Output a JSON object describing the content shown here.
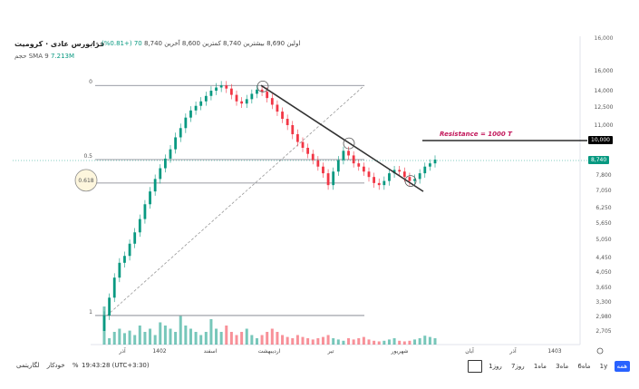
{
  "header": {
    "title": "فرابورس عادی · کرومیت",
    "ohlc": "اولین 8,690 بیشترین 8,740 کمترین 8,600 آخرین 8,740",
    "change": "70 (+0.81%)",
    "volume_label": "حجم SMA 9",
    "volume_value": "7.213M"
  },
  "chart_data": {
    "type": "candlestick",
    "price_axis": [
      "16,000",
      "14,000",
      "12,500",
      "11,000",
      "10,000",
      "8,740",
      "7,800",
      "7,050",
      "6,250",
      "5,650",
      "5,050",
      "4,450",
      "4,050",
      "3,650",
      "3,300",
      "2,980",
      "2,705"
    ],
    "top_partial_label": "16,000",
    "time_axis": [
      "آذر",
      "1402",
      "اسفند",
      "اردیبهشت",
      "تیر",
      "شهریور",
      "آبان",
      "آذر",
      "1403"
    ],
    "fib_levels": [
      {
        "level": "0",
        "price": 14500
      },
      {
        "level": "0.5",
        "price": 8740
      },
      {
        "level": "0.618",
        "price": 7400
      },
      {
        "level": "1",
        "price": 3000
      }
    ],
    "annotation": "Resistance = 1000 T",
    "resistance_label": "10,000",
    "current_price_label": "8,740",
    "close_series": [
      3000,
      3400,
      3900,
      4300,
      4500,
      4900,
      5300,
      5800,
      6400,
      7000,
      7600,
      8200,
      8800,
      9400,
      10200,
      10800,
      11600,
      12200,
      12600,
      13000,
      13500,
      14000,
      14300,
      14500,
      14200,
      13600,
      13000,
      12800,
      13200,
      13700,
      14100,
      13900,
      13300,
      12700,
      12100,
      11500,
      11000,
      10400,
      9900,
      9500,
      9100,
      8700,
      8300,
      7900,
      7300,
      8000,
      8700,
      9300,
      9000,
      8500,
      8300,
      8000,
      7700,
      7400,
      7300,
      7500,
      7900,
      8100,
      8000,
      7700,
      7500,
      7600,
      7900,
      8300,
      8500,
      8740
    ],
    "volume_series": [
      60,
      10,
      20,
      25,
      18,
      22,
      15,
      30,
      20,
      25,
      15,
      35,
      30,
      25,
      20,
      45,
      30,
      25,
      20,
      15,
      20,
      40,
      25,
      20,
      30,
      20,
      15,
      20,
      25,
      15,
      10,
      15,
      20,
      25,
      20,
      15,
      12,
      10,
      15,
      12,
      10,
      8,
      10,
      12,
      15,
      10,
      8,
      6,
      10,
      8,
      10,
      12,
      8,
      6,
      5,
      6,
      8,
      10,
      6,
      5,
      6,
      8,
      10,
      14,
      12,
      10
    ]
  },
  "toolbar": {
    "right": [
      "همه",
      "1y",
      "6ماه",
      "3ماه",
      "1ماه",
      "7روز",
      "1روز"
    ],
    "timezone": "19:43:28 (UTC+3:30)",
    "percent": "%",
    "log": "لگاریتمی",
    "auto": "خودکار"
  },
  "colors": {
    "up": "#089981",
    "down": "#f23645",
    "trend": "#333333",
    "fib": "#787b86",
    "resistance": "#000000",
    "annotation": "#c2185b"
  }
}
